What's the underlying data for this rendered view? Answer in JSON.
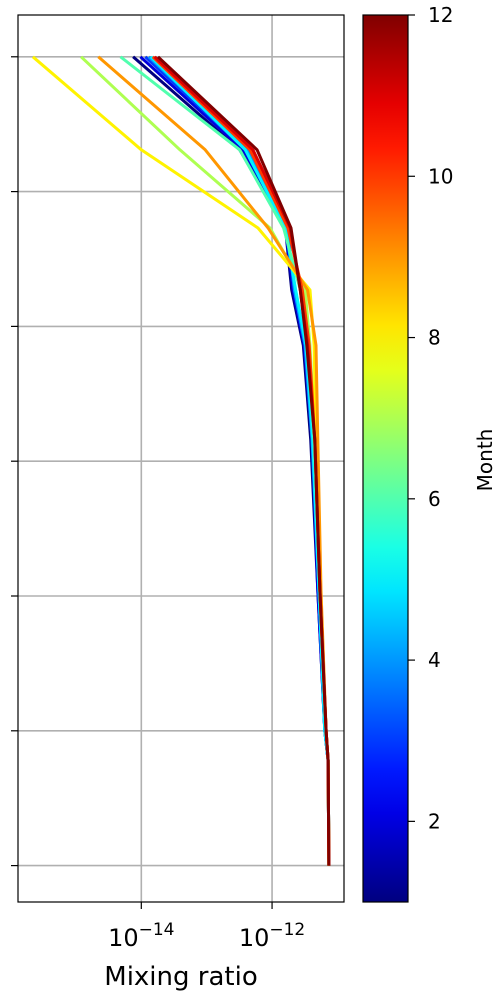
{
  "chart_data": {
    "type": "line",
    "x_label": "Mixing ratio",
    "xscale": "log",
    "xlim": [
      1.3e-16,
      1.26e-11
    ],
    "xticks": [
      {
        "value": 1e-14,
        "label": "10",
        "exponent": "−14"
      },
      {
        "value": 1e-12,
        "label": "10",
        "exponent": "−12"
      }
    ],
    "ylim": [
      -0.27,
      6.31
    ],
    "yticks": [
      0,
      1,
      2,
      3,
      4,
      5,
      6
    ],
    "grid": true,
    "colormap": "jet",
    "colorbar": {
      "label": "Month",
      "clim": [
        1,
        12
      ],
      "ticks": [
        2,
        4,
        6,
        8,
        10,
        12
      ]
    },
    "y": [
      6,
      5.31,
      4.73,
      4.27,
      3.86,
      3.16,
      2.04,
      1.0,
      0.78,
      0
    ],
    "series": [
      {
        "month": 1,
        "values": [
          7.5e-15,
          3.2e-13,
          1.6e-12,
          2e-12,
          3e-12,
          3.9e-12,
          5e-12,
          6.4e-12,
          7.2e-12,
          7.4e-12
        ]
      },
      {
        "month": 2,
        "values": [
          9.7e-15,
          3.6e-13,
          1.6e-12,
          2.1e-12,
          3.1e-12,
          4.1e-12,
          5e-12,
          6.4e-12,
          7.2e-12,
          7.4e-12
        ]
      },
      {
        "month": 3,
        "values": [
          1.15e-14,
          4e-13,
          1.7e-12,
          2.2e-12,
          3.2e-12,
          4.1e-12,
          5.2e-12,
          6.4e-12,
          7.2e-12,
          7.4e-12
        ]
      },
      {
        "month": 4,
        "values": [
          1.3e-14,
          4.2e-13,
          1.7e-12,
          2.2e-12,
          3.2e-12,
          4.1e-12,
          5.2e-12,
          6.4e-12,
          7.2e-12,
          7.4e-12
        ]
      },
      {
        "month": 5,
        "values": [
          1.4e-14,
          3.9e-13,
          1.6e-12,
          2.3e-12,
          3.3e-12,
          4.2e-12,
          5.2e-12,
          6.4e-12,
          7.2e-12,
          7.4e-12
        ]
      },
      {
        "month": 6,
        "values": [
          4.8e-15,
          3.2e-13,
          1.5e-12,
          2.7e-12,
          3.5e-12,
          4.4e-12,
          5.4e-12,
          6.7e-12,
          7.2e-12,
          7.4e-12
        ]
      },
      {
        "month": 7,
        "values": [
          1.2e-15,
          3.9e-14,
          9.3e-13,
          3.2e-12,
          3.8e-12,
          4.5e-12,
          5.4e-12,
          6.7e-12,
          7.2e-12,
          7.4e-12
        ]
      },
      {
        "month": 8,
        "values": [
          2.2e-16,
          1e-14,
          6.1e-13,
          3.8e-12,
          4.4e-12,
          4.7e-12,
          5.4e-12,
          6.7e-12,
          7.2e-12,
          7.4e-12
        ]
      },
      {
        "month": 9,
        "values": [
          2.2e-15,
          9.5e-14,
          8.7e-13,
          3.5e-12,
          4.7e-12,
          5e-12,
          5.6e-12,
          6.7e-12,
          7.2e-12,
          7.4e-12
        ]
      },
      {
        "month": 10,
        "values": [
          1.5e-14,
          4.6e-13,
          1.75e-12,
          2.9e-12,
          3.7e-12,
          4.5e-12,
          5.4e-12,
          6.7e-12,
          7.2e-12,
          7.4e-12
        ]
      },
      {
        "month": 11,
        "values": [
          1.6e-14,
          5.1e-13,
          1.9e-12,
          2.7e-12,
          3.5e-12,
          4.5e-12,
          5.4e-12,
          6.7e-12,
          7.2e-12,
          7.4e-12
        ]
      },
      {
        "month": 12,
        "values": [
          1.8e-14,
          5.9e-13,
          1.95e-12,
          2.7e-12,
          3.4e-12,
          4.5e-12,
          5.4e-12,
          6.7e-12,
          7.2e-12,
          7.4e-12
        ]
      }
    ]
  }
}
